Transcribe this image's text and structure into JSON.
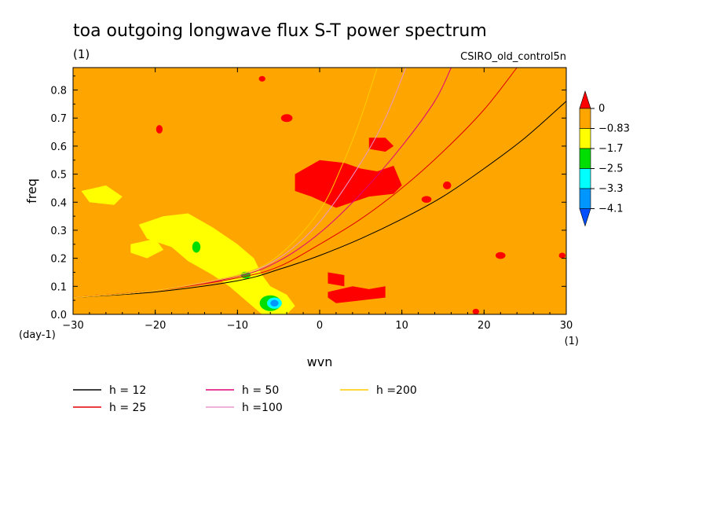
{
  "chart_data": {
    "type": "heatmap",
    "title": "toa outgoing longwave flux S-T power spectrum",
    "subtitle": "(1)",
    "dataset_label": "CSIRO_old_control5n",
    "xlabel": "wvn",
    "ylabel": "freq",
    "x_unit_label": "(1)",
    "y_unit_label": "(day-1)",
    "xlim": [
      -30,
      30
    ],
    "ylim": [
      0,
      0.88
    ],
    "x_ticks": [
      -30,
      -20,
      -10,
      0,
      10,
      20,
      30
    ],
    "x_tick_labels": [
      "−30",
      "−20",
      "−10",
      "0",
      "10",
      "20",
      "30"
    ],
    "y_ticks": [
      0,
      0.1,
      0.2,
      0.3,
      0.4,
      0.5,
      0.6,
      0.7,
      0.8
    ],
    "y_tick_labels": [
      "0.0",
      "0.1",
      "0.2",
      "0.3",
      "0.4",
      "0.5",
      "0.6",
      "0.7",
      "0.8"
    ],
    "background_level_color": "#ffa500",
    "colorbar": {
      "levels": [
        "0",
        "−0.83",
        "−1.7",
        "−2.5",
        "−3.3",
        "−4.1"
      ],
      "colors": [
        "#ff0000",
        "#ffa500",
        "#ffff00",
        "#00dd00",
        "#00ffff",
        "#0096ff",
        "#0050ff"
      ]
    },
    "dispersion_curves": [
      {
        "name": "h = 12",
        "color": "#000000",
        "x": [
          -30,
          -20,
          -10,
          -5,
          0,
          5,
          10,
          15,
          20,
          25,
          30
        ],
        "y": [
          0.06,
          0.08,
          0.12,
          0.16,
          0.21,
          0.27,
          0.34,
          0.42,
          0.52,
          0.63,
          0.76
        ]
      },
      {
        "name": "h = 25",
        "color": "#e00000",
        "x": [
          -30,
          -20,
          -10,
          -5,
          0,
          5,
          10,
          15,
          20,
          24
        ],
        "y": [
          0.06,
          0.085,
          0.13,
          0.17,
          0.25,
          0.34,
          0.45,
          0.58,
          0.73,
          0.88
        ]
      },
      {
        "name": "h = 50",
        "color": "#e0007a",
        "x": [
          -30,
          -20,
          -10,
          -5,
          0,
          5,
          10,
          14,
          16
        ],
        "y": [
          0.06,
          0.085,
          0.135,
          0.19,
          0.29,
          0.43,
          0.6,
          0.76,
          0.88
        ]
      },
      {
        "name": "h =100",
        "color": "#e898c8",
        "x": [
          -30,
          -20,
          -10,
          -5,
          0,
          5,
          8,
          10.5
        ],
        "y": [
          0.06,
          0.085,
          0.14,
          0.2,
          0.33,
          0.54,
          0.7,
          0.88
        ]
      },
      {
        "name": "h =200",
        "color": "#ffcc00",
        "x": [
          -30,
          -20,
          -10,
          -5,
          0,
          3,
          5,
          7
        ],
        "y": [
          0.06,
          0.085,
          0.14,
          0.21,
          0.37,
          0.55,
          0.7,
          0.88
        ]
      }
    ],
    "regions": [
      {
        "level": "−0.83..−1.7",
        "color": "#ffff00",
        "shape": "polygon",
        "x": [
          -22,
          -19,
          -16,
          -13,
          -10,
          -8,
          -7,
          -6,
          -4,
          -3,
          -4,
          -7,
          -9,
          -11,
          -13,
          -16,
          -18,
          -21
        ],
        "y": [
          0.32,
          0.35,
          0.36,
          0.31,
          0.25,
          0.2,
          0.14,
          0.1,
          0.07,
          0.03,
          0.0,
          0.0,
          0.05,
          0.1,
          0.14,
          0.19,
          0.24,
          0.27
        ]
      },
      {
        "level": "−0.83..−1.7",
        "color": "#ffff00",
        "shape": "polygon",
        "x": [
          -29,
          -26,
          -24,
          -25,
          -28
        ],
        "y": [
          0.44,
          0.46,
          0.42,
          0.39,
          0.4
        ]
      },
      {
        "level": "−0.83..−1.7",
        "color": "#ffff00",
        "shape": "polygon",
        "x": [
          -23,
          -20,
          -19,
          -21,
          -23
        ],
        "y": [
          0.25,
          0.27,
          0.23,
          0.2,
          0.22
        ]
      },
      {
        "level": "−1.7..−2.5",
        "color": "#00dd00",
        "shape": "ellipse",
        "cx": -6,
        "cy": 0.04,
        "rx": 1.3,
        "ry": 0.028
      },
      {
        "level": "−2.5..−3.3",
        "color": "#00ffff",
        "shape": "ellipse",
        "cx": -5.5,
        "cy": 0.04,
        "rx": 0.9,
        "ry": 0.02
      },
      {
        "level": "−3.3..−4.1",
        "color": "#0096ff",
        "shape": "ellipse",
        "cx": -5.5,
        "cy": 0.04,
        "rx": 0.5,
        "ry": 0.012
      },
      {
        "level": "−1.7..−2.5",
        "color": "#00dd00",
        "shape": "ellipse",
        "cx": -15,
        "cy": 0.24,
        "rx": 0.5,
        "ry": 0.02
      },
      {
        "level": "−1.7..−2.5",
        "color": "#00dd00",
        "shape": "ellipse",
        "cx": -9,
        "cy": 0.14,
        "rx": 0.6,
        "ry": 0.012
      },
      {
        "level": "> 0",
        "color": "#ff0000",
        "shape": "polygon",
        "x": [
          -3,
          0,
          3,
          5,
          7,
          9,
          10,
          9,
          6,
          4,
          2,
          -1,
          -3,
          -3
        ],
        "y": [
          0.5,
          0.55,
          0.54,
          0.52,
          0.51,
          0.53,
          0.46,
          0.43,
          0.42,
          0.4,
          0.38,
          0.42,
          0.44,
          0.5
        ]
      },
      {
        "level": "> 0",
        "color": "#ff0000",
        "shape": "polygon",
        "x": [
          6,
          8,
          9,
          8,
          6
        ],
        "y": [
          0.63,
          0.63,
          0.6,
          0.58,
          0.59
        ]
      },
      {
        "level": "> 0",
        "color": "#ff0000",
        "shape": "polygon",
        "x": [
          1,
          3,
          3,
          1
        ],
        "y": [
          0.15,
          0.14,
          0.1,
          0.11
        ]
      },
      {
        "level": "> 0",
        "color": "#ff0000",
        "shape": "polygon",
        "x": [
          1,
          4,
          6,
          8,
          8,
          5,
          2,
          1
        ],
        "y": [
          0.08,
          0.1,
          0.09,
          0.1,
          0.06,
          0.05,
          0.04,
          0.06
        ]
      },
      {
        "level": "> 0",
        "color": "#ff0000",
        "shape": "ellipse",
        "cx": -4,
        "cy": 0.7,
        "rx": 0.7,
        "ry": 0.014
      },
      {
        "level": "> 0",
        "color": "#ff0000",
        "shape": "ellipse",
        "cx": -19.5,
        "cy": 0.66,
        "rx": 0.4,
        "ry": 0.015
      },
      {
        "level": "> 0",
        "color": "#ff0000",
        "shape": "ellipse",
        "cx": -7,
        "cy": 0.84,
        "rx": 0.4,
        "ry": 0.01
      },
      {
        "level": "> 0",
        "color": "#ff0000",
        "shape": "ellipse",
        "cx": 15.5,
        "cy": 0.46,
        "rx": 0.5,
        "ry": 0.014
      },
      {
        "level": "> 0",
        "color": "#ff0000",
        "shape": "ellipse",
        "cx": 13,
        "cy": 0.41,
        "rx": 0.6,
        "ry": 0.012
      },
      {
        "level": "> 0",
        "color": "#ff0000",
        "shape": "ellipse",
        "cx": 22,
        "cy": 0.21,
        "rx": 0.6,
        "ry": 0.012
      },
      {
        "level": "> 0",
        "color": "#ff0000",
        "shape": "ellipse",
        "cx": 19,
        "cy": 0.01,
        "rx": 0.4,
        "ry": 0.01
      },
      {
        "level": "> 0",
        "color": "#ff0000",
        "shape": "ellipse",
        "cx": 29.5,
        "cy": 0.21,
        "rx": 0.4,
        "ry": 0.01
      }
    ],
    "legend_placement": "below-plot",
    "grid": false
  }
}
